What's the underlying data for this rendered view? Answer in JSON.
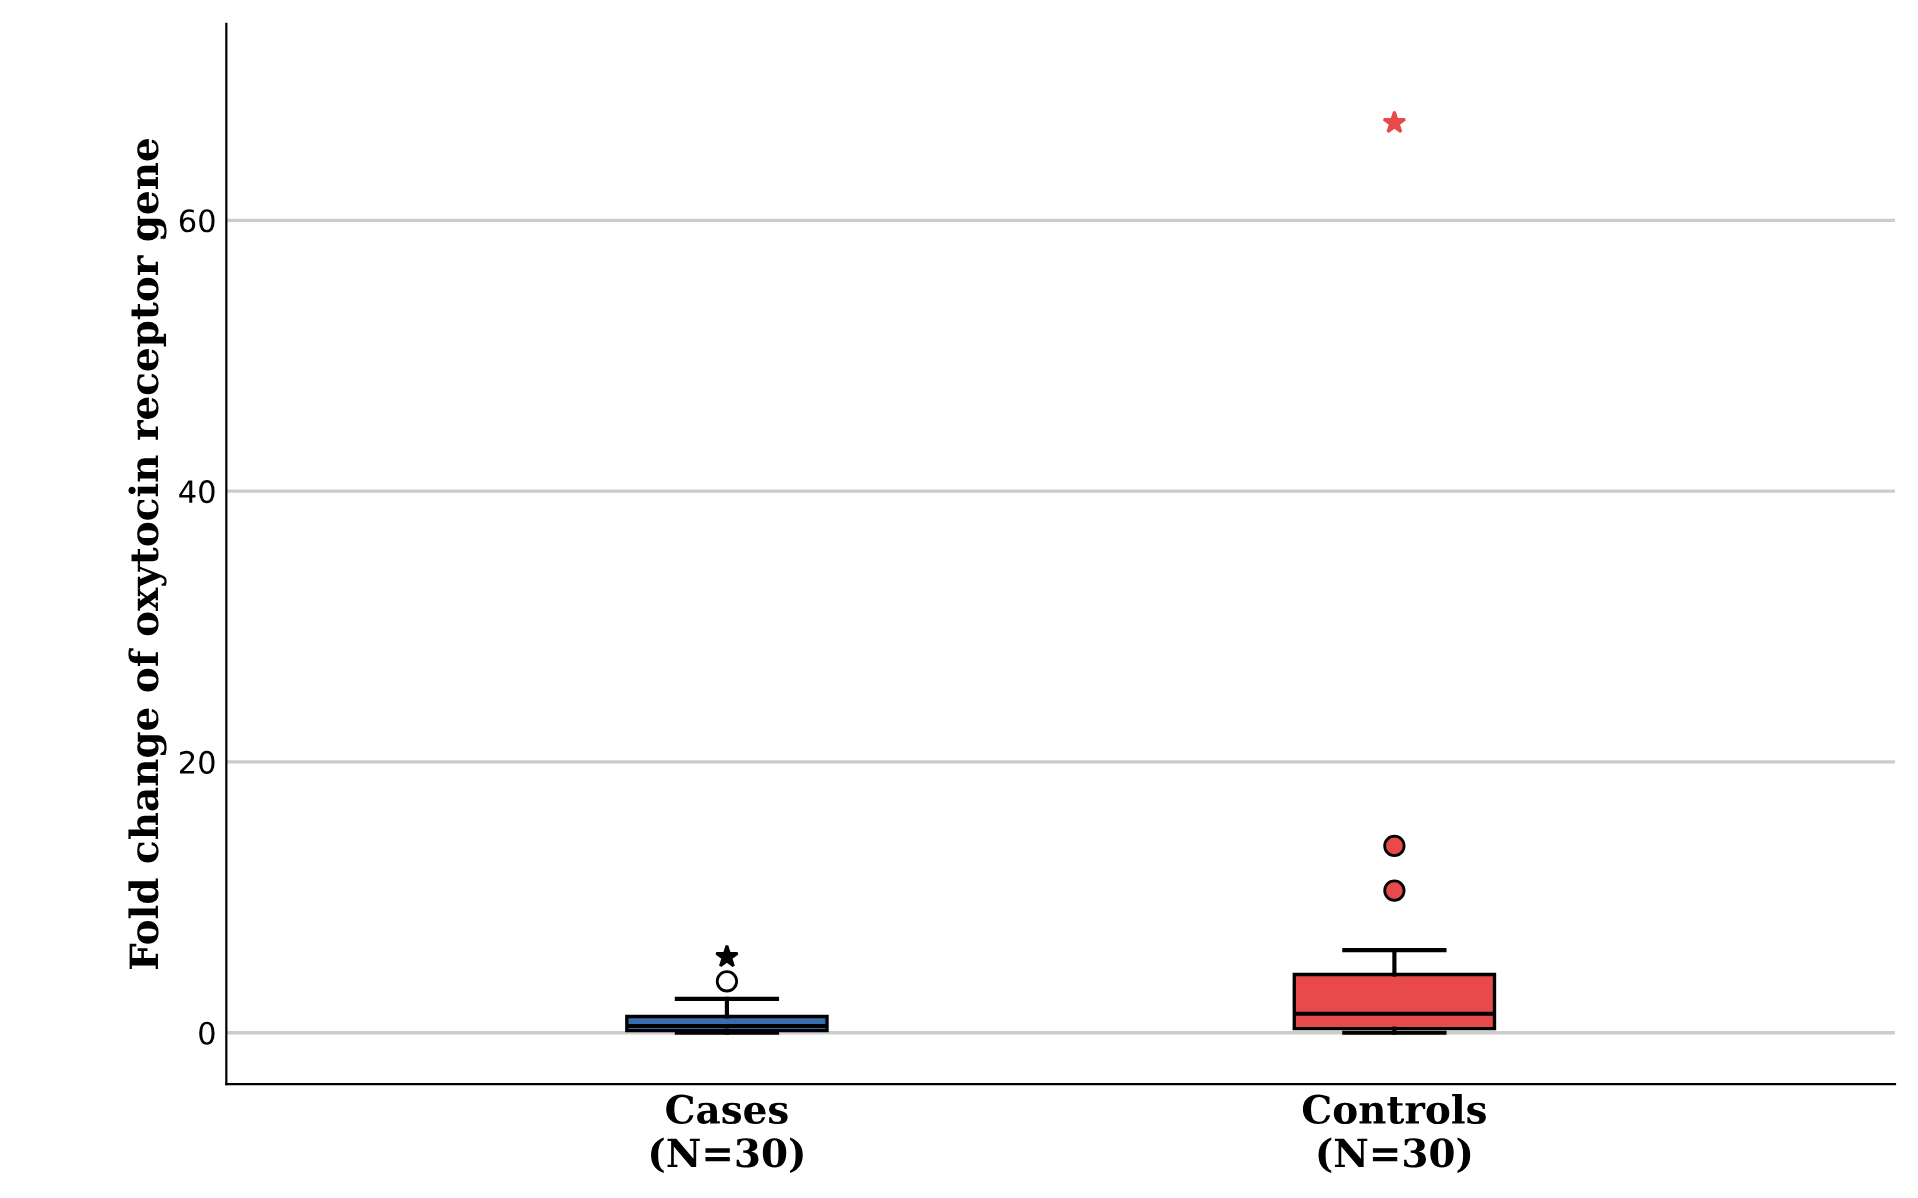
{
  "chart_data": {
    "type": "box",
    "ylabel": "Fold change of oxytocin receptor gene",
    "categories": [
      "Cases\n(N=30)",
      "Controls\n(N=30)"
    ],
    "colors": [
      "#3a6db0",
      "#e8494a"
    ],
    "boxes": [
      {
        "low": 0,
        "q1": 0.15,
        "median": 0.5,
        "q3": 1.2,
        "high": 2.5,
        "outliers": [
          3.8,
          5.6
        ]
      },
      {
        "low": 0,
        "q1": 0.3,
        "median": 1.4,
        "q3": 4.3,
        "high": 6.1,
        "outliers": [
          10.5,
          13.8,
          67.2
        ]
      }
    ],
    "ylim": [
      -3.8,
      74.5
    ],
    "yticks": [
      0,
      20,
      40,
      60
    ],
    "grid": "y"
  }
}
